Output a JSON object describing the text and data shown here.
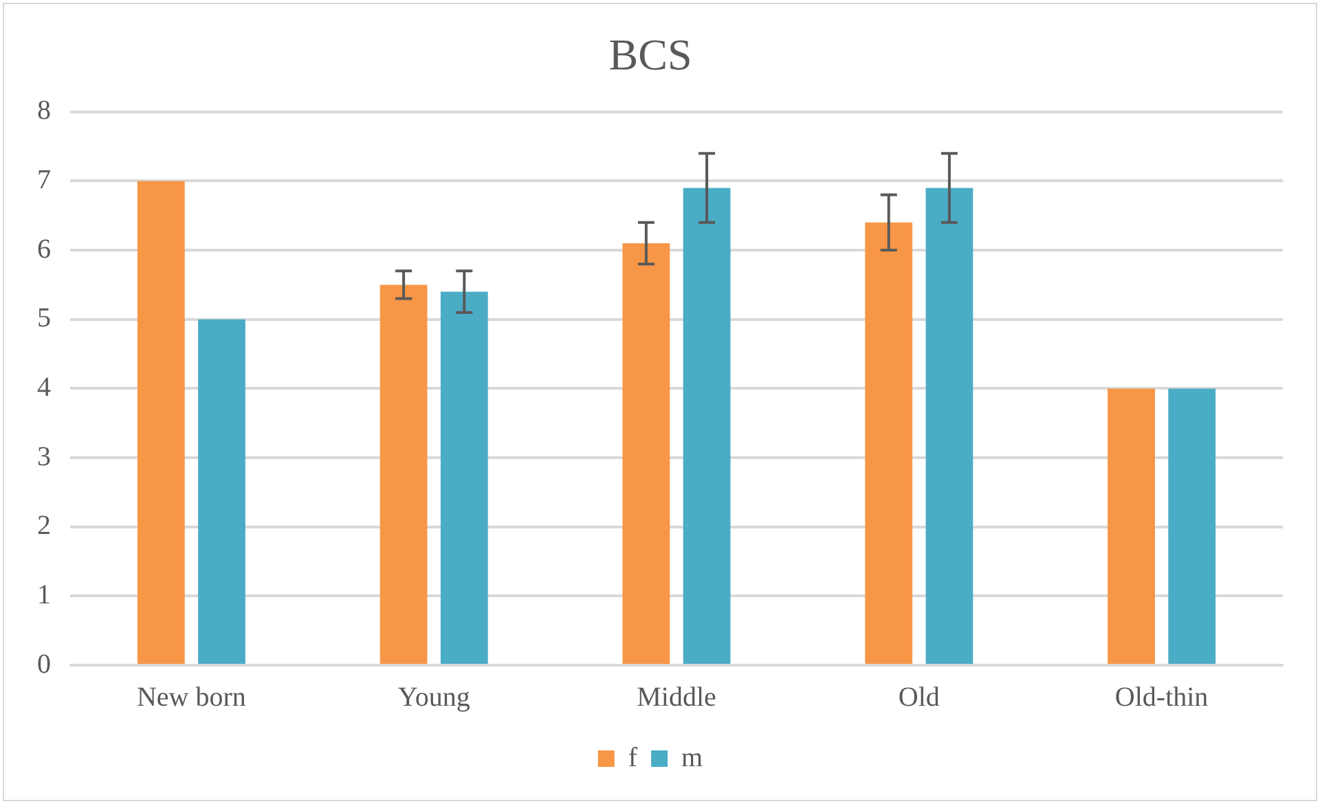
{
  "chart_data": {
    "type": "bar",
    "title": "BCS",
    "categories": [
      "New born",
      "Young",
      "Middle",
      "Old",
      "Old-thin"
    ],
    "series": [
      {
        "name": "f",
        "color": "#f79646",
        "values": [
          7,
          5.5,
          6.1,
          6.4,
          4
        ],
        "errors": [
          null,
          0.2,
          0.3,
          0.4,
          null
        ]
      },
      {
        "name": "m",
        "color": "#4bacc6",
        "values": [
          5,
          5.4,
          6.9,
          6.9,
          4
        ],
        "errors": [
          null,
          0.3,
          0.5,
          0.5,
          null
        ]
      }
    ],
    "ylim": [
      0,
      8
    ],
    "yticks": [
      0,
      1,
      2,
      3,
      4,
      5,
      6,
      7,
      8
    ],
    "grid": "y",
    "legend": "bottom"
  }
}
